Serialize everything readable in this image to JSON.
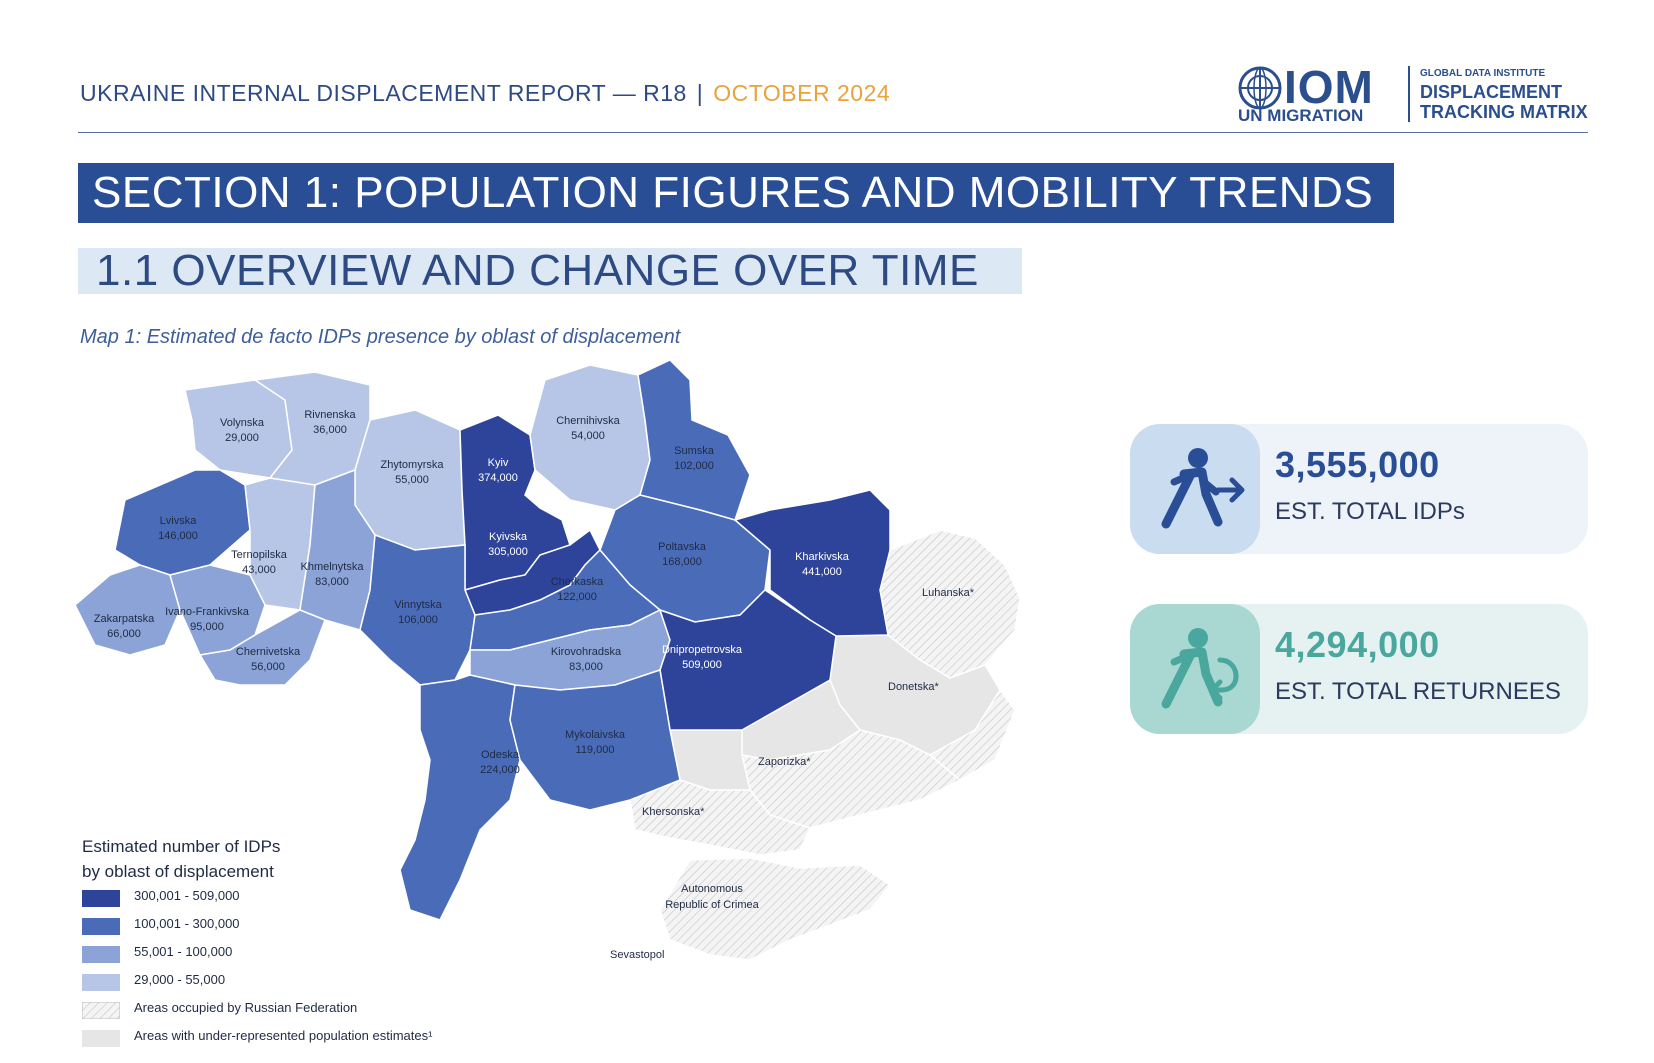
{
  "header": {
    "report_title": "UKRAINE INTERNAL DISPLACEMENT REPORT — R18",
    "separator": "|",
    "date": "OCTOBER 2024"
  },
  "logo": {
    "iom": "IOM",
    "un_migration": "UN MIGRATION",
    "gdi": "GLOBAL DATA INSTITUTE",
    "dtm_line1": "DISPLACEMENT",
    "dtm_line2": "TRACKING MATRIX"
  },
  "section_title": "SECTION 1: POPULATION FIGURES AND MOBILITY TRENDS",
  "subsection_title": "1.1 OVERVIEW AND CHANGE OVER TIME",
  "map_caption": "Map 1: Estimated de facto IDPs presence by oblast of displacement",
  "colors": {
    "class1": "#2d449a",
    "class2": "#4a6cb8",
    "class3": "#8ba3d6",
    "class4": "#b7c6e6",
    "underrep": "#e6e6e6",
    "accent_blue": "#2a4e96",
    "accent_teal": "#4aa79d",
    "date_orange": "#e8a33c"
  },
  "oblasts": [
    {
      "name": "Volynska",
      "value": "29,000",
      "class": "class4"
    },
    {
      "name": "Rivnenska",
      "value": "36,000",
      "class": "class4"
    },
    {
      "name": "Zhytomyrska",
      "value": "55,000",
      "class": "class4"
    },
    {
      "name": "Kyiv",
      "value": "374,000",
      "class": "class1"
    },
    {
      "name": "Chernihivska",
      "value": "54,000",
      "class": "class4"
    },
    {
      "name": "Sumska",
      "value": "102,000",
      "class": "class2"
    },
    {
      "name": "Lvivska",
      "value": "146,000",
      "class": "class2"
    },
    {
      "name": "Ternopilska",
      "value": "43,000",
      "class": "class4"
    },
    {
      "name": "Khmelnytska",
      "value": "83,000",
      "class": "class3"
    },
    {
      "name": "Kyivska",
      "value": "305,000",
      "class": "class1"
    },
    {
      "name": "Poltavska",
      "value": "168,000",
      "class": "class2"
    },
    {
      "name": "Kharkivska",
      "value": "441,000",
      "class": "class1"
    },
    {
      "name": "Zakarpatska",
      "value": "66,000",
      "class": "class3"
    },
    {
      "name": "Ivano-Frankivska",
      "value": "95,000",
      "class": "class3"
    },
    {
      "name": "Vinnytska",
      "value": "106,000",
      "class": "class2"
    },
    {
      "name": "Cherkaska",
      "value": "122,000",
      "class": "class2"
    },
    {
      "name": "Chernivetska",
      "value": "56,000",
      "class": "class3"
    },
    {
      "name": "Kirovohradska",
      "value": "83,000",
      "class": "class3"
    },
    {
      "name": "Dnipropetrovska",
      "value": "509,000",
      "class": "class1"
    },
    {
      "name": "Odeska",
      "value": "224,000",
      "class": "class2"
    },
    {
      "name": "Mykolaivska",
      "value": "119,000",
      "class": "class2"
    }
  ],
  "occupied_labels": {
    "luhanska": "Luhanska*",
    "donetska": "Donetska*",
    "zaporizka": "Zaporizka*",
    "khersonska": "Khersonska*",
    "crimea_line1": "Autonomous",
    "crimea_line2": "Republic of Crimea",
    "sevastopol": "Sevastopol"
  },
  "legend": {
    "title_line1": "Estimated number of IDPs",
    "title_line2": "by oblast of displacement",
    "items": [
      {
        "label": "300,001 - 509,000",
        "class": "class1"
      },
      {
        "label": "100,001 - 300,000",
        "class": "class2"
      },
      {
        "label": "55,001 - 100,000",
        "class": "class3"
      },
      {
        "label": "29,000 - 55,000",
        "class": "class4"
      }
    ],
    "occupied_label": "Areas occupied by Russian Federation",
    "underrep_label": "Areas with under-represented population estimates¹"
  },
  "stats": {
    "idps": {
      "value": "3,555,000",
      "label": "EST. TOTAL IDPs",
      "icon": "person-walking-arrow-icon"
    },
    "returnees": {
      "value": "4,294,000",
      "label": "EST. TOTAL RETURNEES",
      "icon": "person-return-arrow-icon"
    }
  }
}
